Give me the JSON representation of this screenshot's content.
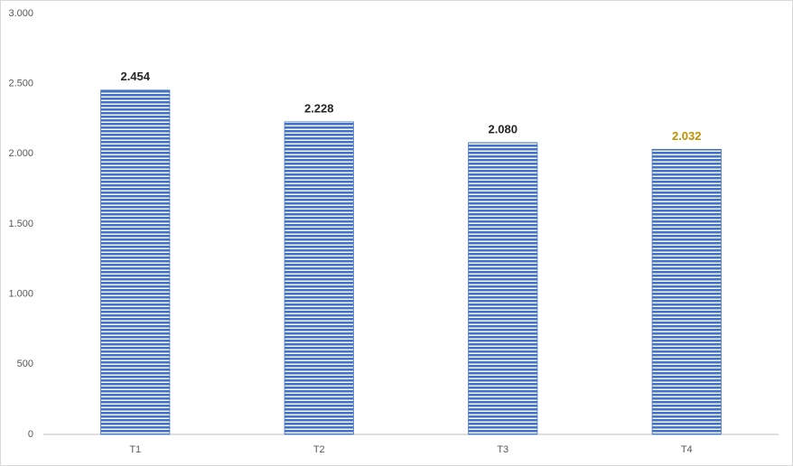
{
  "chart_data": {
    "type": "bar",
    "categories": [
      "T1",
      "T2",
      "T3",
      "T4"
    ],
    "values": [
      2454,
      2228,
      2080,
      2032
    ],
    "value_labels": [
      "2.454",
      "2.228",
      "2.080",
      "2.032"
    ],
    "value_label_colors": [
      "#262626",
      "#262626",
      "#262626",
      "#bf9000"
    ],
    "color": "#4472c4",
    "ylim": [
      0,
      3000
    ],
    "yticks": [
      0,
      500,
      {
        "value": 1000,
        "label": "1.000"
      },
      {
        "value": 1500,
        "label": "1.500"
      },
      {
        "value": 2000,
        "label": "2.000"
      },
      {
        "value": 2500,
        "label": "2.500"
      },
      {
        "value": 3000,
        "label": "3.000"
      }
    ],
    "grid": false
  }
}
